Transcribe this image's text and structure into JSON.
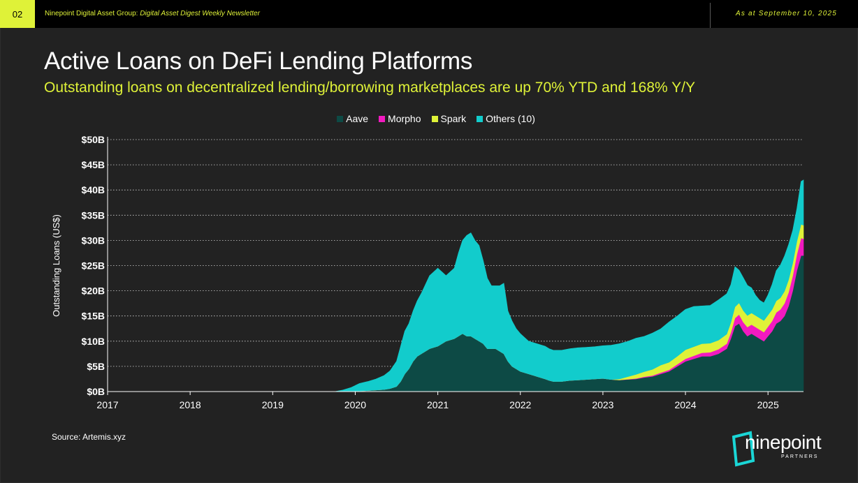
{
  "header": {
    "page_number": "02",
    "org": "Ninepoint Digital Asset Group:",
    "newsletter": "Digital Asset Digest Weekly Newsletter",
    "date": "As at September 10, 2025"
  },
  "title": "Active Loans on DeFi Lending Platforms",
  "subtitle": "Outstanding loans on decentralized lending/borrowing marketplaces are up 70% YTD and 168% Y/Y",
  "source": "Source: Artemis.xyz",
  "logo": {
    "text": "ninepoint",
    "sub": "PARTNERS",
    "accent": "#1ad6d6"
  },
  "colors": {
    "background": "#222222",
    "accent": "#dff238"
  },
  "chart_data": {
    "type": "area",
    "stacked": true,
    "ylabel": "Outstanding Loans (US$)",
    "xlabel": "",
    "ylim": [
      0,
      50
    ],
    "xlim": [
      2017,
      2025.43
    ],
    "x_ticks": [
      "2017",
      "2018",
      "2019",
      "2020",
      "2021",
      "2022",
      "2023",
      "2024",
      "2025"
    ],
    "y_ticks": [
      "$0B",
      "$5B",
      "$10B",
      "$15B",
      "$20B",
      "$25B",
      "$30B",
      "$35B",
      "$40B",
      "$45B",
      "$50B"
    ],
    "grid": "horizontal dotted",
    "legend_position": "top-center",
    "x": [
      2017.0,
      2019.75,
      2019.85,
      2019.95,
      2020.05,
      2020.15,
      2020.25,
      2020.35,
      2020.42,
      2020.5,
      2020.55,
      2020.6,
      2020.65,
      2020.7,
      2020.75,
      2020.8,
      2020.9,
      2021.0,
      2021.1,
      2021.2,
      2021.25,
      2021.3,
      2021.35,
      2021.4,
      2021.45,
      2021.5,
      2021.55,
      2021.6,
      2021.65,
      2021.7,
      2021.75,
      2021.8,
      2021.85,
      2021.9,
      2021.95,
      2022.0,
      2022.1,
      2022.2,
      2022.3,
      2022.35,
      2022.4,
      2022.5,
      2022.6,
      2022.7,
      2022.8,
      2022.9,
      2023.0,
      2023.1,
      2023.2,
      2023.3,
      2023.4,
      2023.5,
      2023.6,
      2023.7,
      2023.8,
      2023.9,
      2024.0,
      2024.1,
      2024.2,
      2024.3,
      2024.4,
      2024.5,
      2024.55,
      2024.6,
      2024.65,
      2024.7,
      2024.75,
      2024.8,
      2024.85,
      2024.9,
      2024.95,
      2025.0,
      2025.05,
      2025.1,
      2025.15,
      2025.2,
      2025.25,
      2025.3,
      2025.35,
      2025.4,
      2025.43
    ],
    "series": [
      {
        "name": "Aave",
        "color": "#0d4a45",
        "values": [
          0,
          0,
          0,
          0,
          0.1,
          0.2,
          0.3,
          0.4,
          0.6,
          1.0,
          2.0,
          3.5,
          4.5,
          6.0,
          7.0,
          7.5,
          8.5,
          9.0,
          10.0,
          10.5,
          11.0,
          11.5,
          11.0,
          11.0,
          10.5,
          10.0,
          9.5,
          8.5,
          8.5,
          8.5,
          8.0,
          7.5,
          6.0,
          5.0,
          4.5,
          4.0,
          3.5,
          3.0,
          2.5,
          2.2,
          2.0,
          2.0,
          2.2,
          2.3,
          2.4,
          2.5,
          2.6,
          2.4,
          2.3,
          2.4,
          2.5,
          2.8,
          3.0,
          3.5,
          4.0,
          5.0,
          6.0,
          6.5,
          7.0,
          7.0,
          7.5,
          8.5,
          10.5,
          13.0,
          13.5,
          12.0,
          11.0,
          11.5,
          11.0,
          10.5,
          10.0,
          11.0,
          12.0,
          13.5,
          14.0,
          15.0,
          17.0,
          20.0,
          24.0,
          27.0,
          27.0
        ]
      },
      {
        "name": "Morpho",
        "color": "#f21ac0",
        "values": [
          0,
          0,
          0,
          0,
          0,
          0,
          0,
          0,
          0,
          0,
          0,
          0,
          0,
          0,
          0,
          0,
          0,
          0,
          0,
          0,
          0,
          0,
          0,
          0,
          0,
          0,
          0,
          0,
          0,
          0,
          0,
          0,
          0,
          0,
          0,
          0,
          0,
          0,
          0,
          0,
          0,
          0,
          0,
          0,
          0,
          0,
          0,
          0,
          0,
          0.05,
          0.1,
          0.15,
          0.2,
          0.25,
          0.3,
          0.4,
          0.5,
          0.6,
          0.7,
          0.8,
          0.9,
          1.0,
          1.2,
          1.6,
          1.8,
          1.8,
          1.8,
          1.8,
          1.8,
          1.8,
          1.8,
          1.9,
          2.0,
          2.2,
          2.3,
          2.5,
          2.7,
          3.0,
          3.2,
          3.5,
          3.3
        ]
      },
      {
        "name": "Spark",
        "color": "#dff238",
        "values": [
          0,
          0,
          0,
          0,
          0,
          0,
          0,
          0,
          0,
          0,
          0,
          0,
          0,
          0,
          0,
          0,
          0,
          0,
          0,
          0,
          0,
          0,
          0,
          0,
          0,
          0,
          0,
          0,
          0,
          0,
          0,
          0,
          0,
          0,
          0,
          0,
          0,
          0,
          0,
          0,
          0,
          0,
          0,
          0,
          0,
          0,
          0,
          0,
          0.2,
          0.5,
          0.8,
          1.0,
          1.2,
          1.5,
          1.5,
          1.6,
          1.8,
          1.8,
          1.8,
          1.8,
          1.8,
          1.9,
          2.0,
          2.2,
          2.3,
          2.3,
          2.3,
          2.3,
          2.3,
          2.3,
          2.3,
          2.3,
          2.3,
          2.3,
          2.3,
          2.4,
          2.5,
          2.5,
          2.6,
          2.7,
          2.7
        ]
      },
      {
        "name": "Others (10)",
        "color": "#12cccc",
        "values": [
          0,
          0,
          0.3,
          0.8,
          1.5,
          1.8,
          2.2,
          2.8,
          3.5,
          5.0,
          7.0,
          8.5,
          9.0,
          10.0,
          11.0,
          12.0,
          14.5,
          15.5,
          13.0,
          14.0,
          16.5,
          18.5,
          20.0,
          20.5,
          19.5,
          19.0,
          16.5,
          14.0,
          12.5,
          12.5,
          13.0,
          14.0,
          10.0,
          9.0,
          8.0,
          7.5,
          6.5,
          6.5,
          6.5,
          6.3,
          6.2,
          6.2,
          6.3,
          6.4,
          6.4,
          6.4,
          6.5,
          6.8,
          7.0,
          7.0,
          7.2,
          7.0,
          7.2,
          7.2,
          8.0,
          8.0,
          8.0,
          8.0,
          7.5,
          7.5,
          8.0,
          8.0,
          7.5,
          8.0,
          6.5,
          6.5,
          6.0,
          5.0,
          4.0,
          3.5,
          3.5,
          4.0,
          5.0,
          6.0,
          6.5,
          7.0,
          7.0,
          6.5,
          6.5,
          8.5,
          9.0
        ]
      }
    ]
  }
}
